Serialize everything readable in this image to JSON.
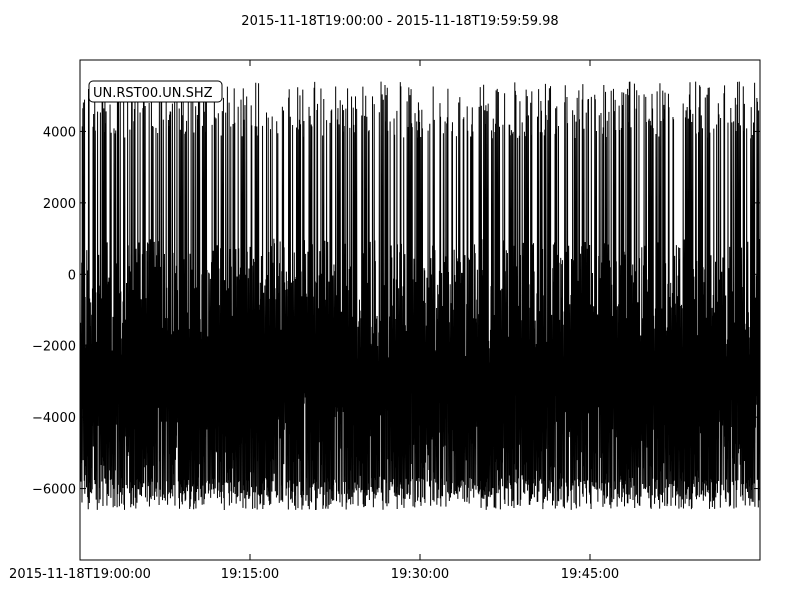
{
  "chart_data": {
    "type": "line",
    "title": "2015-11-18T19:00:00  -  2015-11-18T19:59:59.98",
    "xlabel": "",
    "ylabel": "",
    "x_range": [
      "2015-11-18T19:00:00",
      "2015-11-18T19:59:59.98"
    ],
    "xticks": [
      {
        "label": "2015-11-18T19:00:00",
        "time": "2015-11-18T19:00:00"
      },
      {
        "label": "19:15:00",
        "time": "2015-11-18T19:15:00"
      },
      {
        "label": "19:30:00",
        "time": "2015-11-18T19:30:00"
      },
      {
        "label": "19:45:00",
        "time": "2015-11-18T19:45:00"
      }
    ],
    "yticks": [
      4000,
      2000,
      0,
      -2000,
      -4000,
      -6000
    ],
    "ylim": [
      -8000,
      6000
    ],
    "grid": false,
    "legend": {
      "position": "top-left",
      "entries": [
        "UN.RST00.UN.SHZ"
      ]
    },
    "series": [
      {
        "name": "UN.RST00.UN.SHZ",
        "color": "#000000",
        "description_of_envelope": {
          "approx_min": -6600,
          "approx_max": 5400,
          "dense_band": [
            -6300,
            1000
          ]
        }
      }
    ]
  }
}
